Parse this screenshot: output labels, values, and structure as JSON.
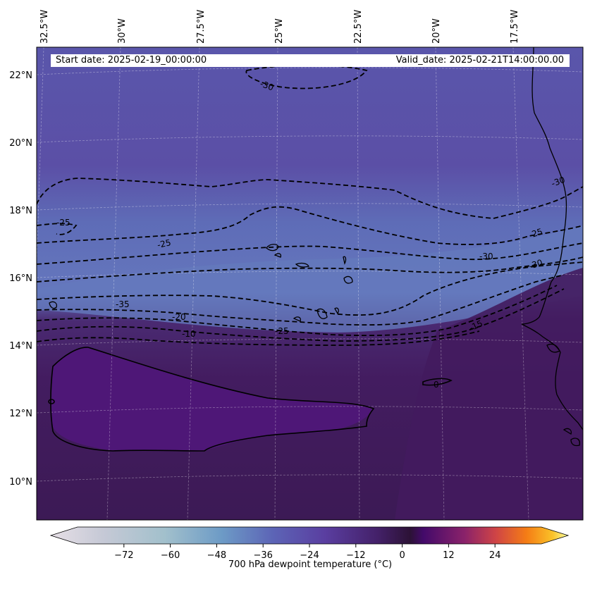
{
  "header": {
    "start_date": "Start date: 2025-02-19_00:00:00",
    "valid_date": "Valid_date: 2025-02-21T14:00:00.00"
  },
  "longitude_labels": [
    "32.5°W",
    "30°W",
    "27.5°W",
    "25°W",
    "22.5°W",
    "20°W",
    "17.5°W"
  ],
  "latitude_labels": [
    "22°N",
    "20°N",
    "18°N",
    "16°N",
    "14°N",
    "12°N",
    "10°N"
  ],
  "contour_labels": [
    "-30",
    "-30",
    "-25",
    "-25",
    "-30",
    "-30",
    "-25",
    "-35",
    "-20",
    "-10",
    "-25",
    "-15",
    "0"
  ],
  "colorbar": {
    "label": "700 hPa dewpoint temperature (°C)",
    "ticks": [
      "−72",
      "−60",
      "−48",
      "−36",
      "−24",
      "−12",
      "0",
      "12",
      "24"
    ],
    "tick_values": [
      -72,
      -60,
      -48,
      -36,
      -24,
      -12,
      0,
      12,
      24
    ],
    "vmin": -84,
    "vmax": 36,
    "colormap": "cividis-like (cold) to inferno-like (warm)"
  },
  "colors": {
    "dry_band": "#5f72bc",
    "mid_purple": "#5a4aa6",
    "moist_dark": "#3a1a55",
    "moist_core": "#4e1777",
    "land_line": "#000000"
  }
}
